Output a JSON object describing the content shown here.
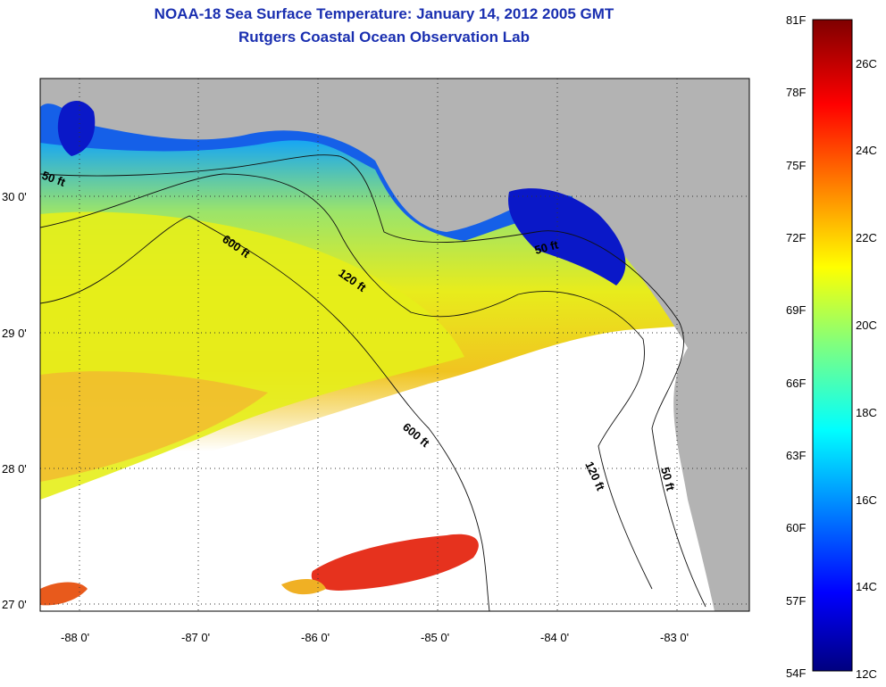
{
  "title": "NOAA-18 Sea Surface Temperature:  January 14, 2012 2005 GMT",
  "subtitle": "Rutgers Coastal Ocean Observation Lab",
  "axes": {
    "lat_labels": [
      "30 0'",
      "29 0'",
      "28 0'",
      "27 0'"
    ],
    "lon_labels": [
      "-88 0'",
      "-87 0'",
      "-86 0'",
      "-85 0'",
      "-84 0'",
      "-83 0'"
    ]
  },
  "contours": [
    {
      "label": "50 ft"
    },
    {
      "label": "600 ft"
    },
    {
      "label": "120 ft"
    },
    {
      "label": "50 ft"
    },
    {
      "label": "600 ft"
    },
    {
      "label": "120 ft"
    },
    {
      "label": "50 ft"
    }
  ],
  "colorbar": {
    "fahrenheit": [
      "81F",
      "78F",
      "75F",
      "72F",
      "69F",
      "66F",
      "63F",
      "60F",
      "57F",
      "54F"
    ],
    "celsius": [
      "26C",
      "24C",
      "22C",
      "20C",
      "18C",
      "16C",
      "14C",
      "12C"
    ]
  },
  "colors": {
    "land": "#b3b3b3",
    "cloud": "#ffffff",
    "title": "#1a2fb0",
    "cold": "#00009e",
    "warm": "#800000"
  }
}
